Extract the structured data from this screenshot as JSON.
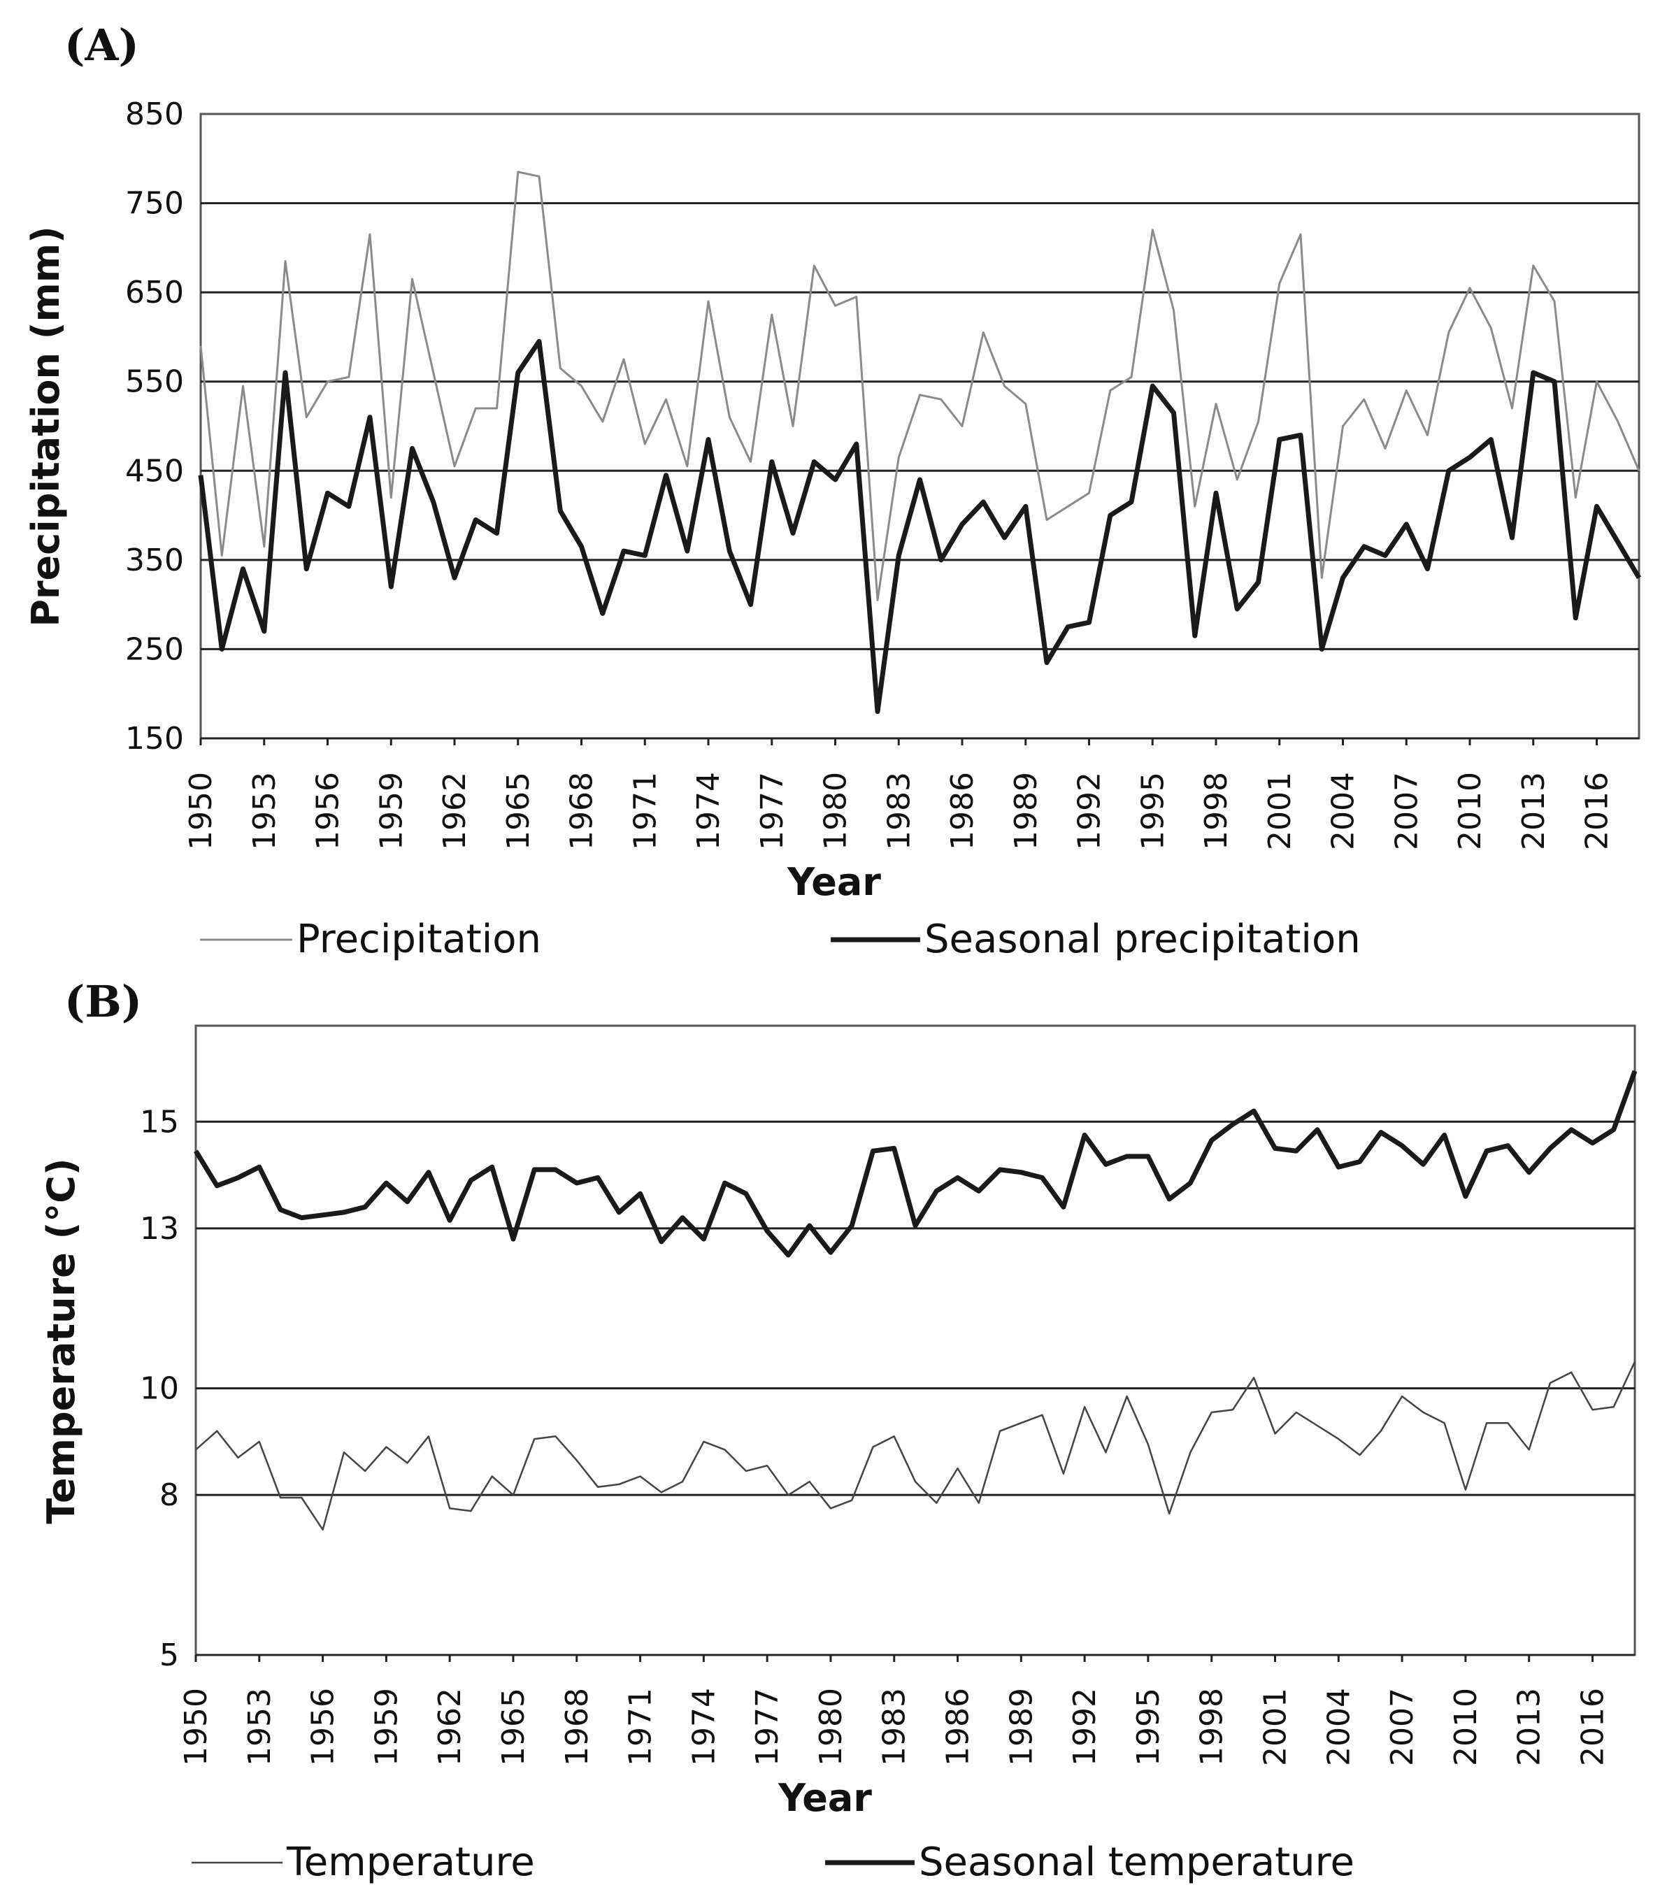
{
  "chart_data": [
    {
      "type": "line",
      "panel_label": "(A)",
      "title": "",
      "xlabel": "Year",
      "ylabel": "Precipitation (mm)",
      "ylim": [
        150,
        850
      ],
      "yticks": [
        "850",
        "750",
        "650",
        "550",
        "450",
        "350",
        "250",
        "150"
      ],
      "xticks": [
        "1950",
        "1953",
        "1956",
        "1959",
        "1962",
        "1965",
        "1968",
        "1971",
        "1974",
        "1977",
        "1980",
        "1983",
        "1986",
        "1989",
        "1992",
        "1995",
        "1998",
        "2001",
        "2004",
        "2007",
        "2010",
        "2013",
        "2016"
      ],
      "grid": "horizontal",
      "legend_position": "bottom",
      "x": [
        1950,
        1951,
        1952,
        1953,
        1954,
        1955,
        1956,
        1957,
        1958,
        1959,
        1960,
        1961,
        1962,
        1963,
        1964,
        1965,
        1966,
        1967,
        1968,
        1969,
        1970,
        1971,
        1972,
        1973,
        1974,
        1975,
        1976,
        1977,
        1978,
        1979,
        1980,
        1981,
        1982,
        1983,
        1984,
        1985,
        1986,
        1987,
        1988,
        1989,
        1990,
        1991,
        1992,
        1993,
        1994,
        1995,
        1996,
        1997,
        1998,
        1999,
        2000,
        2001,
        2002,
        2003,
        2004,
        2005,
        2006,
        2007,
        2008,
        2009,
        2010,
        2011,
        2012,
        2013,
        2014,
        2015,
        2016,
        2017,
        2018
      ],
      "series": [
        {
          "name": "Precipitation",
          "legend_label": "Precipitation",
          "style": "thin",
          "values": [
            590,
            355,
            545,
            365,
            685,
            510,
            550,
            555,
            715,
            420,
            665,
            560,
            455,
            520,
            520,
            785,
            780,
            565,
            545,
            505,
            575,
            480,
            530,
            455,
            640,
            510,
            460,
            625,
            500,
            680,
            635,
            645,
            305,
            465,
            535,
            530,
            500,
            605,
            545,
            525,
            395,
            410,
            425,
            540,
            555,
            720,
            630,
            410,
            525,
            440,
            505,
            660,
            715,
            330,
            500,
            530,
            475,
            540,
            490,
            605,
            655,
            610,
            520,
            680,
            640,
            420,
            550,
            505,
            450
          ]
        },
        {
          "name": "Seasonal precipitation",
          "legend_label": "Seasonal precipitation",
          "style": "thick",
          "values": [
            445,
            250,
            340,
            270,
            560,
            340,
            425,
            410,
            510,
            320,
            475,
            415,
            330,
            395,
            380,
            560,
            595,
            405,
            365,
            290,
            360,
            355,
            445,
            360,
            485,
            360,
            300,
            460,
            380,
            460,
            440,
            480,
            180,
            355,
            440,
            350,
            390,
            415,
            375,
            410,
            235,
            275,
            280,
            400,
            415,
            545,
            515,
            265,
            425,
            295,
            325,
            485,
            490,
            250,
            330,
            365,
            355,
            390,
            340,
            450,
            465,
            485,
            375,
            560,
            550,
            285,
            410,
            370,
            330
          ]
        }
      ]
    },
    {
      "type": "line",
      "panel_label": "(B)",
      "title": "",
      "xlabel": "Year",
      "ylabel": "Temperature (°C)",
      "ylim": [
        5,
        16.8
      ],
      "yticks": [
        "15",
        "13",
        "10",
        "8",
        "5"
      ],
      "xticks": [
        "1950",
        "1953",
        "1956",
        "1959",
        "1962",
        "1965",
        "1968",
        "1971",
        "1974",
        "1977",
        "1980",
        "1983",
        "1986",
        "1989",
        "1992",
        "1995",
        "1998",
        "2001",
        "2004",
        "2007",
        "2010",
        "2013",
        "2016"
      ],
      "grid": "horizontal",
      "legend_position": "bottom",
      "x": [
        1950,
        1951,
        1952,
        1953,
        1954,
        1955,
        1956,
        1957,
        1958,
        1959,
        1960,
        1961,
        1962,
        1963,
        1964,
        1965,
        1966,
        1967,
        1968,
        1969,
        1970,
        1971,
        1972,
        1973,
        1974,
        1975,
        1976,
        1977,
        1978,
        1979,
        1980,
        1981,
        1982,
        1983,
        1984,
        1985,
        1986,
        1987,
        1988,
        1989,
        1990,
        1991,
        1992,
        1993,
        1994,
        1995,
        1996,
        1997,
        1998,
        1999,
        2000,
        2001,
        2002,
        2003,
        2004,
        2005,
        2006,
        2007,
        2008,
        2009,
        2010,
        2011,
        2012,
        2013,
        2014,
        2015,
        2016,
        2017,
        2018
      ],
      "series": [
        {
          "name": "Temperature",
          "legend_label": "Temperature",
          "style": "thin",
          "values": [
            8.85,
            9.2,
            8.7,
            9.0,
            7.95,
            7.95,
            7.35,
            8.8,
            8.45,
            8.9,
            8.6,
            9.1,
            7.75,
            7.7,
            8.35,
            8.0,
            9.05,
            9.1,
            8.65,
            8.15,
            8.2,
            8.35,
            8.05,
            8.25,
            9.0,
            8.85,
            8.45,
            8.55,
            8.0,
            8.25,
            7.75,
            7.9,
            8.9,
            9.1,
            8.25,
            7.85,
            8.5,
            7.85,
            9.2,
            9.35,
            9.5,
            8.4,
            9.65,
            8.8,
            9.85,
            8.95,
            7.65,
            8.8,
            9.55,
            9.6,
            10.2,
            9.15,
            9.55,
            9.3,
            9.05,
            8.75,
            9.2,
            9.85,
            9.55,
            9.35,
            8.1,
            9.35,
            9.35,
            8.85,
            10.1,
            10.3,
            9.6,
            9.65,
            10.5
          ]
        },
        {
          "name": "Seasonal temperature",
          "legend_label": "Seasonal temperature",
          "style": "thick",
          "values": [
            14.45,
            13.8,
            13.95,
            14.15,
            13.35,
            13.2,
            13.25,
            13.3,
            13.4,
            13.85,
            13.5,
            14.05,
            13.15,
            13.9,
            14.15,
            12.8,
            14.1,
            14.1,
            13.85,
            13.95,
            13.3,
            13.65,
            12.75,
            13.2,
            12.8,
            13.85,
            13.65,
            12.95,
            12.5,
            13.05,
            12.55,
            13.05,
            14.45,
            14.5,
            13.05,
            13.7,
            13.95,
            13.7,
            14.1,
            14.05,
            13.95,
            13.4,
            14.75,
            14.2,
            14.35,
            14.35,
            13.55,
            13.85,
            14.65,
            14.95,
            15.2,
            14.5,
            14.45,
            14.85,
            14.15,
            14.25,
            14.8,
            14.55,
            14.2,
            14.75,
            13.6,
            14.45,
            14.55,
            14.05,
            14.5,
            14.85,
            14.6,
            14.85,
            15.95
          ]
        }
      ]
    }
  ]
}
